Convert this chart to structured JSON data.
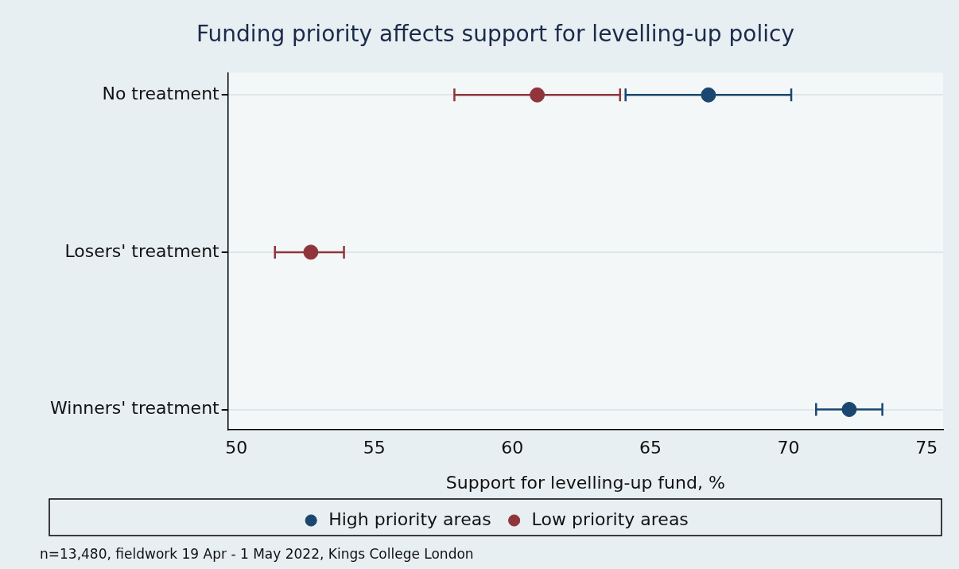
{
  "chart_data": {
    "type": "scatter",
    "orientation": "horizontal",
    "title": "Funding priority affects support for levelling-up policy",
    "xlabel": "Support for levelling-up fund, %",
    "categories": [
      "No treatment",
      "Losers' treatment",
      "Winners' treatment"
    ],
    "series": [
      {
        "name": "High priority areas",
        "color": "#1a476f",
        "values": [
          67.1,
          null,
          72.2
        ],
        "errors": [
          [
            64.1,
            70.1
          ],
          null,
          [
            71.0,
            73.4
          ]
        ]
      },
      {
        "name": "Low priority areas",
        "color": "#90353b",
        "values": [
          60.9,
          52.7,
          null
        ],
        "errors": [
          [
            57.9,
            63.9
          ],
          [
            51.4,
            53.9
          ],
          null
        ]
      }
    ],
    "xlim": [
      49.7,
      75.6
    ],
    "xticks": [
      50,
      55,
      60,
      65,
      70,
      75
    ],
    "grid": "y",
    "legend": "bottom",
    "marker": "circle",
    "annotations": [
      "n=13,480, fieldwork 19 Apr - 1 May 2022, Kings College London"
    ]
  }
}
